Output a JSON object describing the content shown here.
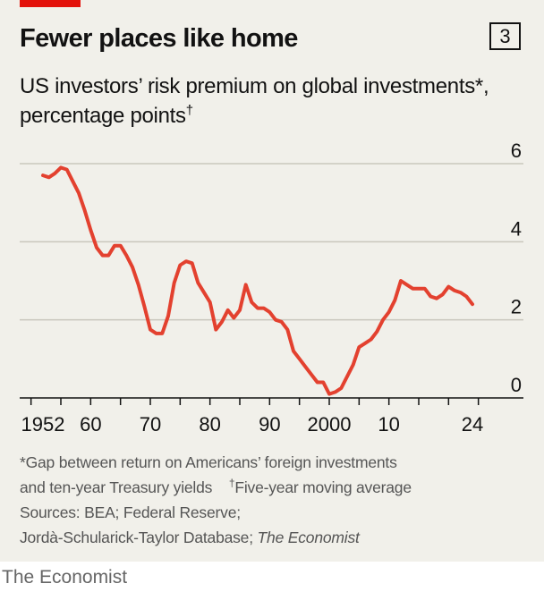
{
  "header": {
    "title": "Fewer places like home",
    "badge": "3",
    "subtitle_main": "US investors’ risk premium on global investments*, percentage points",
    "subtitle_mark": "†"
  },
  "notes": {
    "line1": "*Gap between return on Americans’ foreign investments",
    "line2_text": "and ten-year Treasury yields",
    "line2_mark": "†",
    "line2_rest": "Five-year moving average",
    "line3": "Sources: BEA; Federal Reserve;",
    "line4_text": "Jordà-Schularick-Taylor Database;",
    "line4_italic": "The Economist"
  },
  "brand": "The Economist",
  "colors": {
    "line": "#e3412f",
    "grid": "#c9c7bd",
    "axis": "#121212",
    "panel": "#f1f0ea",
    "accent": "#e3120b"
  },
  "chart_data": {
    "type": "line",
    "title": "Fewer places like home",
    "ylabel": "US investors’ risk premium on global investments*, percentage points†",
    "xlim": [
      1948,
      2028
    ],
    "ylim": [
      0,
      6
    ],
    "y_axis_side": "right",
    "grid": "horizontal",
    "yticks": [
      0,
      2,
      4,
      6
    ],
    "ytick_labels": [
      "0",
      "2",
      "4",
      "6"
    ],
    "xtick_labels": [
      {
        "x": 1952,
        "label": "1952"
      },
      {
        "x": 1960,
        "label": "60"
      },
      {
        "x": 1970,
        "label": "70"
      },
      {
        "x": 1980,
        "label": "80"
      },
      {
        "x": 1990,
        "label": "90"
      },
      {
        "x": 2000,
        "label": "2000"
      },
      {
        "x": 2010,
        "label": "10"
      },
      {
        "x": 2024,
        "label": "24"
      }
    ],
    "minor_ticks": [
      1950,
      1955,
      1960,
      1965,
      1970,
      1975,
      1980,
      1985,
      1990,
      1995,
      2000,
      2005,
      2010,
      2015,
      2020,
      2025
    ],
    "x": [
      1952,
      1953,
      1954,
      1955,
      1956,
      1957,
      1958,
      1959,
      1960,
      1961,
      1962,
      1963,
      1964,
      1965,
      1966,
      1967,
      1968,
      1969,
      1970,
      1971,
      1972,
      1973,
      1974,
      1975,
      1976,
      1977,
      1978,
      1979,
      1980,
      1981,
      1982,
      1983,
      1984,
      1985,
      1986,
      1987,
      1988,
      1989,
      1990,
      1991,
      1992,
      1993,
      1994,
      1995,
      1996,
      1997,
      1998,
      1999,
      2000,
      2001,
      2002,
      2003,
      2004,
      2005,
      2006,
      2007,
      2008,
      2009,
      2010,
      2011,
      2012,
      2013,
      2014,
      2015,
      2016,
      2017,
      2018,
      2019,
      2020,
      2021,
      2022,
      2023,
      2024
    ],
    "y": [
      5.7,
      5.65,
      5.75,
      5.9,
      5.85,
      5.55,
      5.25,
      4.8,
      4.3,
      3.85,
      3.65,
      3.65,
      3.9,
      3.9,
      3.65,
      3.35,
      2.9,
      2.35,
      1.75,
      1.65,
      1.65,
      2.1,
      2.95,
      3.4,
      3.5,
      3.45,
      2.95,
      2.7,
      2.45,
      1.75,
      1.95,
      2.25,
      2.05,
      2.25,
      2.9,
      2.45,
      2.3,
      2.3,
      2.2,
      2.0,
      1.95,
      1.75,
      1.2,
      1.0,
      0.8,
      0.6,
      0.4,
      0.4,
      0.1,
      0.15,
      0.25,
      0.55,
      0.85,
      1.3,
      1.4,
      1.5,
      1.7,
      2.0,
      2.2,
      2.5,
      3.0,
      2.9,
      2.8,
      2.8,
      2.8,
      2.6,
      2.55,
      2.65,
      2.85,
      2.75,
      2.7,
      2.6,
      2.4
    ]
  }
}
